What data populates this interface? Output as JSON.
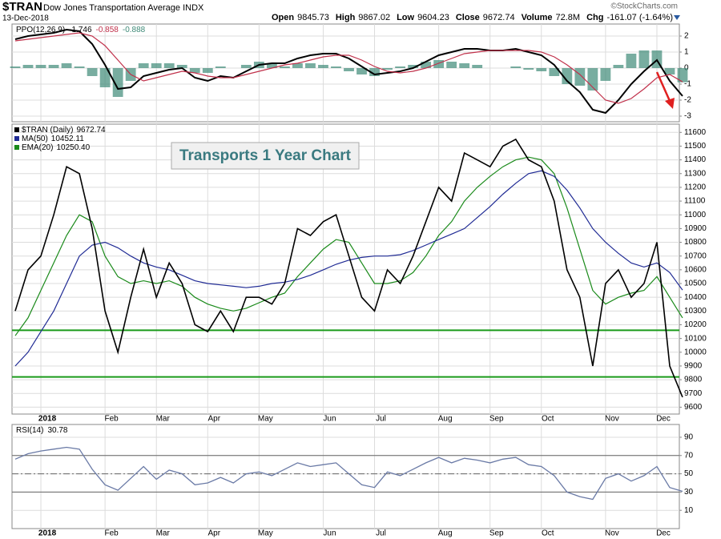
{
  "header": {
    "symbol": "$TRAN",
    "name": "Dow Jones Transportation Average INDX",
    "date": "13-Dec-2018",
    "quote": [
      {
        "label": "Open",
        "value": 9845.73
      },
      {
        "label": "High",
        "value": 9867.02
      },
      {
        "label": "Low",
        "value": 9604.23
      },
      {
        "label": "Close",
        "value": 9672.74
      },
      {
        "label": "Volume",
        "value": "72.8M"
      },
      {
        "label": "Chg",
        "value": "-161.07 (-1.64%)"
      }
    ],
    "credit": "©StockCharts.com"
  },
  "chart_data": [
    {
      "type": "ppo",
      "title": "PPO(12,26,9)",
      "categories": [
        null,
        null,
        "2018",
        null,
        null,
        null,
        null,
        "Feb",
        null,
        null,
        null,
        "Mar",
        null,
        null,
        null,
        "Apr",
        null,
        null,
        null,
        "May",
        null,
        null,
        null,
        null,
        "Jun",
        null,
        null,
        null,
        "Jul",
        null,
        null,
        null,
        null,
        "Aug",
        null,
        null,
        null,
        "Sep",
        null,
        null,
        null,
        "Oct",
        null,
        null,
        null,
        null,
        "Nov",
        null,
        null,
        null,
        "Dec",
        null,
        null
      ],
      "ylim": [
        -3.35,
        2.75
      ],
      "yticks": [
        2,
        1,
        0,
        -1,
        -2,
        -3
      ],
      "series": [
        {
          "name": "PPO",
          "last": -1.746,
          "color": "#000000",
          "values": [
            1.8,
            2.0,
            2.1,
            2.2,
            2.4,
            2.3,
            1.5,
            0.2,
            -1.3,
            -1.2,
            -0.5,
            -0.3,
            -0.1,
            0.0,
            -0.6,
            -0.8,
            -0.5,
            -0.6,
            -0.2,
            0.2,
            0.3,
            0.3,
            0.6,
            0.8,
            0.9,
            0.9,
            0.6,
            0.1,
            -0.4,
            -0.3,
            -0.2,
            0.0,
            0.4,
            0.8,
            1.0,
            1.2,
            1.2,
            1.1,
            1.1,
            1.2,
            1.0,
            0.8,
            0.2,
            -0.8,
            -1.5,
            -2.6,
            -2.8,
            -2.0,
            -1.0,
            -0.2,
            0.5,
            -0.8,
            -1.746
          ]
        },
        {
          "name": "Signal",
          "last": -0.858,
          "color": "#c0304a",
          "values": [
            1.7,
            1.8,
            1.9,
            2.0,
            2.1,
            2.2,
            2.0,
            1.4,
            0.5,
            -0.4,
            -0.8,
            -0.6,
            -0.4,
            -0.2,
            -0.3,
            -0.5,
            -0.6,
            -0.6,
            -0.4,
            -0.2,
            0.0,
            0.2,
            0.3,
            0.5,
            0.7,
            0.8,
            0.8,
            0.5,
            0.1,
            -0.2,
            -0.3,
            -0.2,
            0.0,
            0.3,
            0.6,
            0.9,
            1.0,
            1.1,
            1.1,
            1.1,
            1.1,
            1.0,
            0.7,
            0.2,
            -0.4,
            -1.2,
            -2.0,
            -2.2,
            -1.9,
            -1.3,
            -0.6,
            -0.4,
            -0.858
          ]
        },
        {
          "name": "Histogram",
          "last": -0.888,
          "color": "#3f8a78",
          "bars": true,
          "values": [
            0.1,
            0.2,
            0.2,
            0.2,
            0.3,
            0.1,
            -0.5,
            -1.2,
            -1.8,
            -0.8,
            0.3,
            0.3,
            0.3,
            0.2,
            -0.3,
            -0.3,
            0.1,
            0.0,
            0.2,
            0.4,
            0.3,
            0.1,
            0.3,
            0.3,
            0.2,
            0.1,
            -0.2,
            -0.4,
            -0.5,
            -0.1,
            0.1,
            0.2,
            0.4,
            0.5,
            0.4,
            0.3,
            0.2,
            0.0,
            0.0,
            0.1,
            -0.1,
            -0.2,
            -0.5,
            -1.0,
            -1.1,
            -1.4,
            -0.8,
            0.2,
            0.9,
            1.1,
            1.1,
            -0.4,
            -0.888
          ]
        }
      ]
    },
    {
      "type": "price",
      "annotation": "Transports 1 Year Chart",
      "categories": [
        null,
        null,
        "2018",
        null,
        null,
        null,
        null,
        "Feb",
        null,
        null,
        null,
        "Mar",
        null,
        null,
        null,
        "Apr",
        null,
        null,
        null,
        "May",
        null,
        null,
        null,
        null,
        "Jun",
        null,
        null,
        null,
        "Jul",
        null,
        null,
        null,
        null,
        "Aug",
        null,
        null,
        null,
        "Sep",
        null,
        null,
        null,
        "Oct",
        null,
        null,
        null,
        null,
        "Nov",
        null,
        null,
        null,
        "Dec",
        null,
        null
      ],
      "ylim": [
        9550,
        11660
      ],
      "yticks": [
        9600,
        9700,
        9800,
        9900,
        10000,
        10100,
        10200,
        10300,
        10400,
        10500,
        10600,
        10700,
        10800,
        10900,
        11000,
        11100,
        11200,
        11300,
        11400,
        11500,
        11600
      ],
      "hlines": [
        10160,
        9820
      ],
      "hline_color": "#1a9a1a",
      "series": [
        {
          "name": "$TRAN (Daily)",
          "last": "9672.74",
          "color": "#000000",
          "values": [
            10300,
            10600,
            10700,
            11000,
            11350,
            11300,
            10900,
            10300,
            10000,
            10400,
            10750,
            10400,
            10650,
            10500,
            10200,
            10150,
            10300,
            10150,
            10400,
            10400,
            10350,
            10500,
            10900,
            10850,
            10950,
            11000,
            10700,
            10400,
            10300,
            10600,
            10500,
            10700,
            10950,
            11200,
            11100,
            11450,
            11400,
            11350,
            11500,
            11550,
            11400,
            11350,
            11100,
            10600,
            10400,
            9900,
            10500,
            10600,
            10400,
            10500,
            10800,
            9900,
            9673
          ]
        },
        {
          "name": "MA(50)",
          "last": "10452.11",
          "color": "#1f2a94",
          "values": [
            9900,
            10000,
            10150,
            10300,
            10500,
            10700,
            10780,
            10800,
            10760,
            10700,
            10650,
            10620,
            10600,
            10560,
            10520,
            10500,
            10490,
            10480,
            10470,
            10480,
            10500,
            10510,
            10530,
            10560,
            10600,
            10640,
            10670,
            10690,
            10700,
            10700,
            10710,
            10740,
            10780,
            10820,
            10860,
            10900,
            10980,
            11060,
            11150,
            11230,
            11300,
            11320,
            11280,
            11180,
            11050,
            10900,
            10800,
            10720,
            10650,
            10620,
            10650,
            10580,
            10452
          ]
        },
        {
          "name": "EMA(20)",
          "last": "10250.40",
          "color": "#1a8a1a",
          "values": [
            10120,
            10250,
            10450,
            10650,
            10850,
            11000,
            10950,
            10700,
            10550,
            10500,
            10520,
            10500,
            10520,
            10480,
            10400,
            10350,
            10320,
            10300,
            10320,
            10360,
            10400,
            10430,
            10550,
            10650,
            10750,
            10820,
            10800,
            10650,
            10500,
            10500,
            10520,
            10580,
            10700,
            10850,
            10950,
            11100,
            11200,
            11280,
            11350,
            11400,
            11420,
            11400,
            11300,
            11050,
            10750,
            10450,
            10350,
            10400,
            10430,
            10450,
            10550,
            10400,
            10250
          ]
        }
      ]
    },
    {
      "type": "rsi",
      "title": "RSI(14)",
      "last": 30.78,
      "categories": [
        null,
        null,
        "2018",
        null,
        null,
        null,
        null,
        "Feb",
        null,
        null,
        null,
        "Mar",
        null,
        null,
        null,
        "Apr",
        null,
        null,
        null,
        "May",
        null,
        null,
        null,
        null,
        "Jun",
        null,
        null,
        null,
        "Jul",
        null,
        null,
        null,
        null,
        "Aug",
        null,
        null,
        null,
        "Sep",
        null,
        null,
        null,
        "Oct",
        null,
        null,
        null,
        null,
        "Nov",
        null,
        null,
        null,
        "Dec",
        null,
        null
      ],
      "ylim": [
        -10,
        104
      ],
      "yticks": [
        90,
        70,
        50,
        30,
        10
      ],
      "levels": [
        70,
        50,
        30
      ],
      "color": "#6a7aa6",
      "values": [
        66,
        72,
        75,
        77,
        79,
        77,
        55,
        38,
        32,
        45,
        58,
        44,
        54,
        50,
        38,
        40,
        46,
        40,
        50,
        52,
        48,
        55,
        62,
        58,
        60,
        62,
        50,
        38,
        35,
        52,
        48,
        55,
        62,
        68,
        62,
        67,
        65,
        62,
        66,
        68,
        60,
        58,
        48,
        30,
        25,
        22,
        45,
        50,
        42,
        48,
        58,
        35,
        30.78
      ]
    }
  ]
}
